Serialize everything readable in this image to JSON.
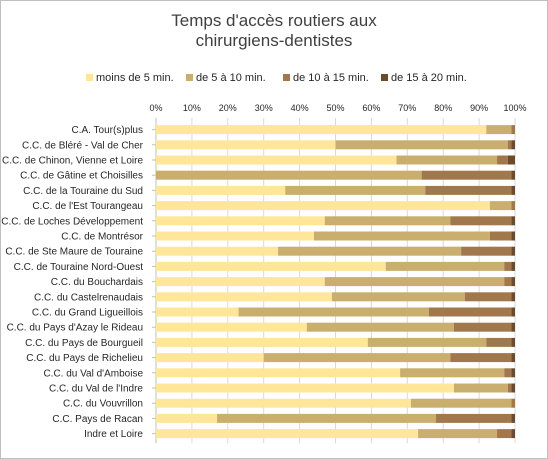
{
  "chart_data": {
    "type": "bar",
    "orientation": "horizontal",
    "stacked": true,
    "percent": true,
    "title": "Temps d'accès routiers aux chirurgiens-dentistes",
    "title_lines": [
      "Temps d'accès routiers aux",
      "chirurgiens-dentistes"
    ],
    "xlim": [
      0,
      100
    ],
    "x_ticks": [
      "0%",
      "10%",
      "20%",
      "30%",
      "40%",
      "50%",
      "60%",
      "70%",
      "80%",
      "90%",
      "100%"
    ],
    "grid": true,
    "legend_position": "top",
    "categories": [
      "C.A. Tour(s)plus",
      "C.C. de Bléré - Val de Cher",
      "C.C. de Chinon, Vienne et Loire",
      "C.C. de Gâtine et Choisilles",
      "C.C. de la Touraine du Sud",
      "C.C. de l'Est Tourangeau",
      "C.C. de Loches Développement",
      "C.C. de Montrésor",
      "C.C. de Ste Maure de Touraine",
      "C.C. de Touraine Nord-Ouest",
      "C.C. du Bouchardais",
      "C.C. du Castelrenaudais",
      "C.C. du Grand Ligueillois",
      "C.C. du Pays d'Azay le Rideau",
      "C.C. du Pays de Bourgueil",
      "C.C. du Pays de Richelieu",
      "C.C. du Val d'Amboise",
      "C.C. du Val de l'Indre",
      "C.C. du Vouvrillon",
      "C.C. Pays de Racan",
      "Indre et Loire"
    ],
    "series": [
      {
        "name": "moins de 5 min.",
        "color": "#FFE699",
        "values": [
          92,
          50,
          67,
          0,
          36,
          93,
          47,
          44,
          34,
          64,
          47,
          49,
          23,
          42,
          59,
          30,
          68,
          83,
          71,
          17,
          73
        ]
      },
      {
        "name": "de 5 à 10 min.",
        "color": "#C9AE6E",
        "values": [
          7,
          48,
          28,
          74,
          39,
          6,
          35,
          49,
          51,
          33,
          50,
          37,
          53,
          41,
          33,
          52,
          29,
          15,
          28,
          61,
          22
        ]
      },
      {
        "name": "de 10 à 15 min.",
        "color": "#A1784C",
        "values": [
          1,
          1,
          3,
          25,
          24,
          1,
          17,
          6,
          14,
          2,
          2,
          13,
          23,
          16,
          7,
          17,
          2,
          1,
          1,
          21,
          4
        ]
      },
      {
        "name": "de 15 à 20 min.",
        "color": "#6B4A2E",
        "values": [
          0,
          1,
          2,
          1,
          1,
          0,
          1,
          1,
          1,
          1,
          1,
          1,
          1,
          1,
          1,
          1,
          1,
          1,
          0,
          1,
          1
        ]
      }
    ]
  }
}
